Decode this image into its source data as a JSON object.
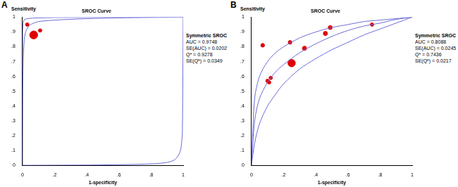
{
  "chart_data": [
    {
      "type": "scatter",
      "panel_label": "A",
      "title": "SROC Curve",
      "y_label": "Sensitivity",
      "x_label": "1-specificity",
      "annotations": [
        "Symmetric SROC",
        "AUC = 0.9748",
        "SE(AUC) = 0.0202",
        "Q* = 0.9278",
        "SE(Q*) = 0.0349"
      ],
      "xlim": [
        0,
        1
      ],
      "ylim": [
        0,
        1
      ],
      "xticks": [
        0,
        {
          "value": 0.2,
          "label": ".2"
        },
        {
          "value": 0.4,
          "label": ".4"
        },
        {
          "value": 0.6,
          "label": ".6"
        },
        {
          "value": 0.8,
          "label": ".8"
        },
        1
      ],
      "yticks": [
        0,
        {
          "value": 0.1,
          "label": ".1"
        },
        {
          "value": 0.2,
          "label": ".2"
        },
        {
          "value": 0.3,
          "label": ".3"
        },
        {
          "value": 0.4,
          "label": ".4"
        },
        {
          "value": 0.5,
          "label": ".5"
        },
        {
          "value": 0.6,
          "label": ".6"
        },
        {
          "value": 0.7,
          "label": ".7"
        },
        {
          "value": 0.8,
          "label": ".8"
        },
        {
          "value": 0.9,
          "label": ".9"
        },
        1
      ],
      "grid": false,
      "series": [
        {
          "type": "line",
          "color": "#6b6bd6",
          "x": [
            0,
            0.002,
            0.005,
            0.01,
            0.02,
            0.04,
            0.06,
            0.1,
            0.2,
            0.4,
            0.6,
            0.8,
            1
          ],
          "values": [
            0,
            0.5,
            0.7,
            0.83,
            0.9,
            0.94,
            0.955,
            0.97,
            0.98,
            0.99,
            0.995,
            0.998,
            1
          ]
        },
        {
          "type": "line",
          "color": "#6b6bd6",
          "x": [
            0,
            0.001,
            0.003,
            0.01,
            0.03,
            0.1,
            0.3,
            1
          ],
          "values": [
            0,
            0.85,
            0.95,
            0.98,
            0.99,
            0.995,
            0.998,
            1
          ]
        },
        {
          "type": "line",
          "color": "#6b6bd6",
          "x": [
            0,
            0.2,
            0.5,
            0.8,
            0.9,
            0.95,
            0.98,
            0.99,
            0.995,
            1
          ],
          "values": [
            0,
            0.001,
            0.003,
            0.01,
            0.02,
            0.04,
            0.09,
            0.15,
            0.23,
            1
          ]
        },
        {
          "type": "scatter",
          "color": "#e00000",
          "marker": "circle",
          "x": [
            0.03,
            0.07,
            0.11
          ],
          "values": [
            0.95,
            0.88,
            0.91
          ],
          "weights": [
            6,
            32,
            6
          ]
        }
      ]
    },
    {
      "type": "scatter",
      "panel_label": "B",
      "title": "SROC Curve",
      "y_label": "Sensitivity",
      "x_label": "1-specificity",
      "annotations": [
        "Symmetric SROC",
        "AUC = 0.8088",
        "SE(AUC) = 0.0245",
        "Q* = 0.7436",
        "SE(Q*) = 0.0217"
      ],
      "xlim": [
        0,
        1
      ],
      "ylim": [
        0,
        1
      ],
      "xticks": [
        0,
        {
          "value": 0.2,
          "label": ".2"
        },
        {
          "value": 0.4,
          "label": ".4"
        },
        {
          "value": 0.6,
          "label": ".6"
        },
        {
          "value": 0.8,
          "label": ".8"
        },
        1
      ],
      "yticks": [
        0,
        {
          "value": 0.1,
          "label": ".1"
        },
        {
          "value": 0.2,
          "label": ".2"
        },
        {
          "value": 0.3,
          "label": ".3"
        },
        {
          "value": 0.4,
          "label": ".4"
        },
        {
          "value": 0.5,
          "label": ".5"
        },
        {
          "value": 0.6,
          "label": ".6"
        },
        {
          "value": 0.7,
          "label": ".7"
        },
        {
          "value": 0.8,
          "label": ".8"
        },
        {
          "value": 0.9,
          "label": ".9"
        },
        1
      ],
      "grid": false,
      "series": [
        {
          "type": "line",
          "color": "#6b6bd6",
          "x": [
            0,
            0.02,
            0.05,
            0.1,
            0.15,
            0.2,
            0.3,
            0.4,
            0.5,
            0.6,
            0.7,
            0.8,
            0.9,
            1
          ],
          "values": [
            0,
            0.3,
            0.45,
            0.56,
            0.63,
            0.68,
            0.76,
            0.82,
            0.87,
            0.91,
            0.94,
            0.96,
            0.985,
            1
          ]
        },
        {
          "type": "line",
          "color": "#6b6bd6",
          "x": [
            0,
            0.02,
            0.05,
            0.1,
            0.15,
            0.2,
            0.3,
            0.4,
            0.5,
            0.6,
            0.7,
            0.8,
            0.9,
            1
          ],
          "values": [
            0,
            0.45,
            0.6,
            0.7,
            0.76,
            0.8,
            0.86,
            0.9,
            0.93,
            0.95,
            0.97,
            0.98,
            0.99,
            1
          ]
        },
        {
          "type": "line",
          "color": "#6b6bd6",
          "x": [
            0,
            0.02,
            0.05,
            0.1,
            0.15,
            0.2,
            0.3,
            0.4,
            0.5,
            0.6,
            0.7,
            0.8,
            0.9,
            1
          ],
          "values": [
            0,
            0.15,
            0.28,
            0.4,
            0.48,
            0.55,
            0.65,
            0.72,
            0.78,
            0.83,
            0.88,
            0.92,
            0.96,
            1
          ]
        },
        {
          "type": "scatter",
          "color": "#e00000",
          "marker": "circle",
          "x": [
            0.07,
            0.1,
            0.11,
            0.12,
            0.24,
            0.25,
            0.33,
            0.46,
            0.49,
            0.75
          ],
          "values": [
            0.81,
            0.57,
            0.56,
            0.59,
            0.83,
            0.69,
            0.79,
            0.89,
            0.93,
            0.95
          ],
          "weights": [
            7,
            6,
            6,
            6,
            7,
            28,
            9,
            9,
            8,
            6
          ]
        }
      ]
    }
  ]
}
